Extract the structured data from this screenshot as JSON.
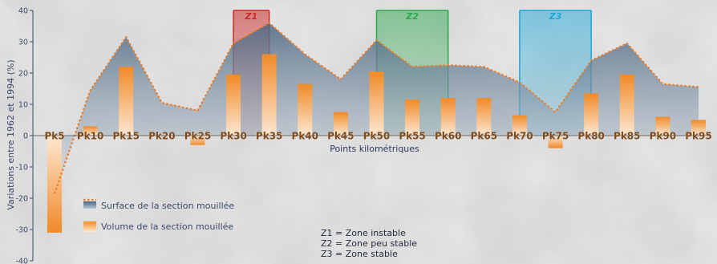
{
  "chart_data": {
    "type": "bar",
    "xlabel": "Points kilométriques",
    "ylabel": "Variations entre 1962 et 1994 (%)",
    "ylim": [
      -40,
      40
    ],
    "yticks": [
      -40,
      -30,
      -20,
      -10,
      0,
      10,
      20,
      30,
      40
    ],
    "categories": [
      "Pk5",
      "Pk10",
      "Pk15",
      "Pk20",
      "Pk25",
      "Pk30",
      "Pk35",
      "Pk40",
      "Pk45",
      "Pk50",
      "Pk55",
      "Pk60",
      "Pk65",
      "Pk70",
      "Pk75",
      "Pk80",
      "Pk85",
      "Pk90",
      "Pk95"
    ],
    "series": [
      {
        "name": "Surface de la section mouillée",
        "kind": "area",
        "values": [
          -18.5,
          14.5,
          31.5,
          10.5,
          8,
          29.5,
          36,
          26,
          18,
          30.5,
          22,
          22.5,
          22,
          17,
          7.5,
          24,
          29.5,
          16.5,
          15.5
        ]
      },
      {
        "name": "Volume de la section mouillée",
        "kind": "bar",
        "values": [
          -31,
          3,
          22,
          0,
          -3,
          19.5,
          26,
          16.5,
          7.5,
          20.5,
          11.5,
          12,
          12,
          6.5,
          -4,
          13.5,
          19.5,
          6,
          5
        ]
      }
    ],
    "zones": [
      {
        "label": "Z1",
        "from": "Pk30",
        "to": "Pk35",
        "color": "#cc2a2a"
      },
      {
        "label": "Z2",
        "from": "Pk50",
        "to": "Pk60",
        "color": "#2ea84e"
      },
      {
        "label": "Z3",
        "from": "Pk70",
        "to": "Pk80",
        "color": "#1aa7d8"
      }
    ],
    "zone_notes": [
      "Z1 = Zone instable",
      "Z2 = Zone peu stable",
      "Z3 = Zone stable"
    ],
    "legend_position": "bottom-left",
    "grid": false
  },
  "colors": {
    "line": "#ea7d2a",
    "bar_top": "#f08a28",
    "area_top": "#4b6680",
    "tick_label": "#7a4a1e",
    "axis": "#3a4a6a"
  }
}
